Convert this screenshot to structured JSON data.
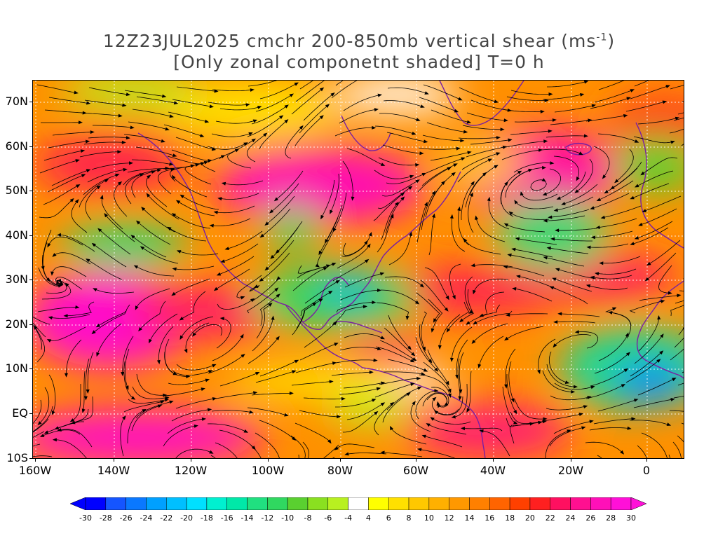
{
  "title": {
    "line1_prefix": "12Z23JUL2025 cmchr 200-850mb vertical shear (ms",
    "line1_sup": "-1",
    "line1_suffix": ")",
    "line2": "[Only zonal componetnt shaded] T=0 h"
  },
  "axes": {
    "lat_labels": [
      "70N",
      "60N",
      "50N",
      "40N",
      "30N",
      "20N",
      "10N",
      "EQ",
      "10S"
    ],
    "lon_labels": [
      "160W",
      "140W",
      "120W",
      "100W",
      "80W",
      "60W",
      "40W",
      "20W",
      "0"
    ]
  },
  "colorbar": {
    "labels": [
      "-30",
      "-28",
      "-26",
      "-24",
      "-22",
      "-20",
      "-18",
      "-16",
      "-14",
      "-12",
      "-10",
      "-8",
      "-6",
      "-4",
      "4",
      "6",
      "8",
      "10",
      "12",
      "14",
      "16",
      "18",
      "20",
      "22",
      "24",
      "26",
      "28",
      "30"
    ],
    "colors": [
      "#0000ff",
      "#1555ff",
      "#0a78ff",
      "#00a0ff",
      "#00bfff",
      "#00e0ff",
      "#00f0d0",
      "#00e8a8",
      "#20e080",
      "#30d860",
      "#5ad030",
      "#8ae020",
      "#b8f020",
      "#ffffff",
      "#ffff00",
      "#ffe000",
      "#ffc800",
      "#ffb000",
      "#ff9800",
      "#ff8000",
      "#ff6400",
      "#ff4000",
      "#ff2020",
      "#ff1060",
      "#ff1090",
      "#ff10b8",
      "#ff10d8"
    ]
  },
  "colors": {
    "coastline": "#7a1fa2",
    "streamline": "#000000",
    "grid": "#ffffff"
  }
}
